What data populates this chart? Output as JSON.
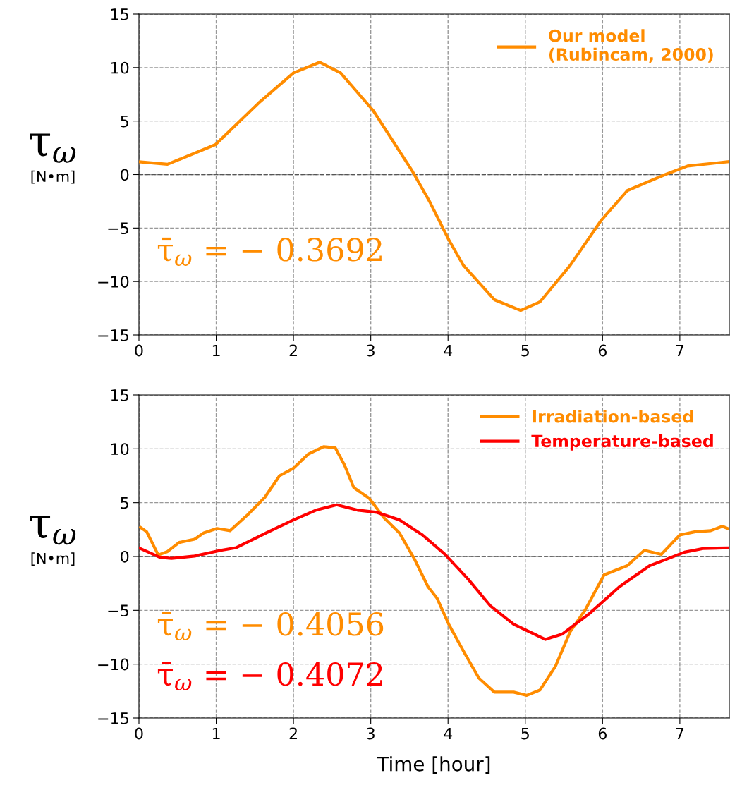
{
  "chart_data": [
    {
      "type": "line",
      "ylabel": "τ$_{ω}$\n[N•m]",
      "xlim": [
        0,
        7.64
      ],
      "ylim": [
        -15,
        15
      ],
      "xticks": [
        0,
        1,
        2,
        3,
        4,
        5,
        6,
        7
      ],
      "yticks": [
        -15,
        -10,
        -5,
        0,
        5,
        10,
        15
      ],
      "grid": true,
      "legend": "top right",
      "line_style": "solid",
      "marker": "none",
      "ref_lines": [
        {
          "axis": "y",
          "value": 0,
          "color": "#555555",
          "line_style": "dashed"
        }
      ],
      "annotations": [
        "τ̄$_{ω}$ = − 0.3692"
      ],
      "series": [
        {
          "name": "Our model\n(Rubincam, 2000)",
          "color": "#ff8c00",
          "x": [
            0,
            0.37,
            0.99,
            1.55,
            2.0,
            2.34,
            2.61,
            3.03,
            3.54,
            3.76,
            4.01,
            4.2,
            4.6,
            4.94,
            5.19,
            5.58,
            5.98,
            6.32,
            6.81,
            7.1,
            7.62
          ],
          "values": [
            1.2,
            0.96,
            2.8,
            6.7,
            9.5,
            10.5,
            9.5,
            6.0,
            0.3,
            -2.5,
            -6.1,
            -8.5,
            -11.7,
            -12.7,
            -11.9,
            -8.5,
            -4.3,
            -1.5,
            0,
            0.8,
            1.2
          ]
        }
      ]
    },
    {
      "type": "line",
      "xlabel": "Time [hour]",
      "ylabel": "τ$_{ω}$\n[N•m]",
      "xlim": [
        0,
        7.64
      ],
      "ylim": [
        -15,
        15
      ],
      "xticks": [
        0,
        1,
        2,
        3,
        4,
        5,
        6,
        7
      ],
      "yticks": [
        -15,
        -10,
        -5,
        0,
        5,
        10,
        15
      ],
      "grid": true,
      "legend": "top right",
      "line_style": "solid",
      "marker": "none",
      "ref_lines": [
        {
          "axis": "y",
          "value": 0,
          "color": "#555555",
          "line_style": "dashed"
        }
      ],
      "annotations": [
        "τ̄$_{ω}$ = − 0.4056",
        "τ̄$_{ω}$ = − 0.4072"
      ],
      "series": [
        {
          "name": "Irradiation-based",
          "color": "#ff8c00",
          "x": [
            0.02,
            0.1,
            0.25,
            0.37,
            0.52,
            0.72,
            0.84,
            1.01,
            1.18,
            1.41,
            1.63,
            1.82,
            2.0,
            2.19,
            2.39,
            2.54,
            2.66,
            2.78,
            2.98,
            3.17,
            3.37,
            3.57,
            3.74,
            3.86,
            4.01,
            4.2,
            4.4,
            4.6,
            4.85,
            5.02,
            5.19,
            5.39,
            5.58,
            5.78,
            6.02,
            6.32,
            6.54,
            6.76,
            7.0,
            7.2,
            7.4,
            7.55,
            7.62
          ],
          "values": [
            2.7,
            2.3,
            0.14,
            0.46,
            1.3,
            1.6,
            2.2,
            2.6,
            2.4,
            3.9,
            5.5,
            7.5,
            8.2,
            9.5,
            10.2,
            10.1,
            8.5,
            6.4,
            5.4,
            3.6,
            2.2,
            -0.3,
            -2.8,
            -3.9,
            -6.3,
            -8.8,
            -11.3,
            -12.6,
            -12.6,
            -12.9,
            -12.4,
            -10.2,
            -7.0,
            -4.9,
            -1.7,
            -0.85,
            0.57,
            0.2,
            2.0,
            2.3,
            2.4,
            2.8,
            2.6
          ]
        },
        {
          "name": "Temperature-based",
          "color": "#ff0000",
          "x": [
            0,
            0.27,
            0.42,
            0.72,
            1.06,
            1.26,
            1.65,
            2.0,
            2.29,
            2.56,
            2.83,
            3.08,
            3.37,
            3.67,
            3.96,
            4.26,
            4.55,
            4.85,
            5.26,
            5.48,
            5.83,
            6.22,
            6.61,
            6.81,
            7.06,
            7.3,
            7.62
          ],
          "values": [
            0.8,
            -0.07,
            -0.18,
            0.04,
            0.57,
            0.82,
            2.2,
            3.4,
            4.3,
            4.8,
            4.3,
            4.1,
            3.4,
            2.0,
            0.2,
            -2.1,
            -4.6,
            -6.3,
            -7.7,
            -7.2,
            -5.3,
            -2.8,
            -0.85,
            -0.3,
            0.4,
            0.74,
            0.8
          ]
        }
      ]
    }
  ]
}
